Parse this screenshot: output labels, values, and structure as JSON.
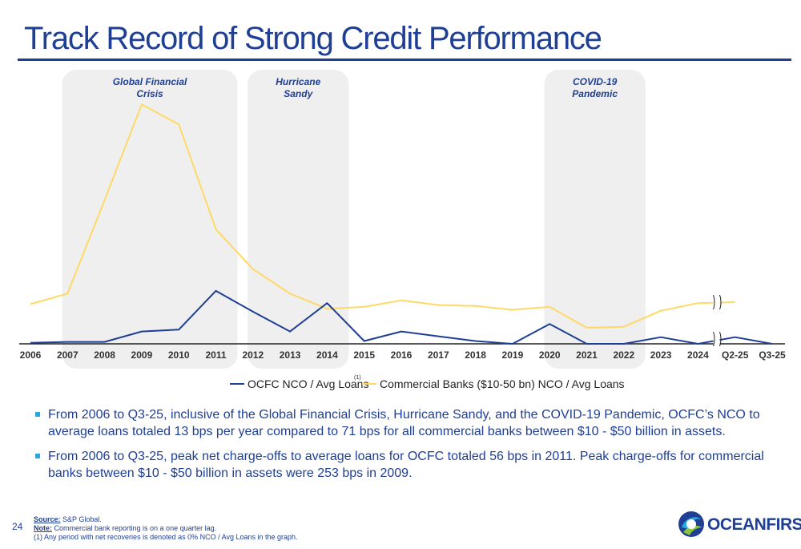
{
  "page": {
    "title": "Track Record of Strong Credit Performance",
    "page_number": "24"
  },
  "chart_data": {
    "type": "line",
    "categories": [
      "2006",
      "2007",
      "2008",
      "2009",
      "2010",
      "2011",
      "2012",
      "2013",
      "2014",
      "2015",
      "2016",
      "2017",
      "2018",
      "2019",
      "2020",
      "2021",
      "2022",
      "2023",
      "2024",
      "Q2-25",
      "Q3-25"
    ],
    "series": [
      {
        "name": "OCFC NCO / Avg Loans",
        "superscript": "(1)",
        "color": "#1f3f94",
        "values": [
          1,
          2,
          2,
          13,
          15,
          56,
          34,
          13,
          43,
          3,
          13,
          8,
          3,
          0,
          21,
          0,
          0,
          7,
          0,
          7,
          0
        ]
      },
      {
        "name": "Commercial Banks ($10-50 bn) NCO / Avg Loans",
        "color": "#ffd966",
        "values": [
          42,
          53,
          152,
          253,
          232,
          121,
          79,
          53,
          37,
          39,
          46,
          41,
          40,
          36,
          39,
          17,
          18,
          35,
          43,
          44,
          null
        ]
      }
    ],
    "ylim": [
      0,
      260
    ],
    "axis_break_between": [
      "2024",
      "Q2-25"
    ],
    "highlight_bands": [
      {
        "label_lines": [
          "Global Financial",
          "Crisis"
        ],
        "from": "2008",
        "to": "2011"
      },
      {
        "label_lines": [
          "Hurricane",
          "Sandy"
        ],
        "from": "2013",
        "to": "2014"
      },
      {
        "label_lines": [
          "COVID-19",
          "Pandemic"
        ],
        "from": "2021",
        "to": "2022"
      }
    ],
    "band_color": "#efefef",
    "xlabel": "",
    "ylabel": "",
    "grid": false,
    "legend_position": "bottom"
  },
  "bullets": [
    "From 2006 to Q3-25, inclusive of the Global Financial Crisis, Hurricane Sandy, and the COVID-19 Pandemic, OCFC’s NCO to average loans totaled 13 bps per year compared to 71 bps for all commercial banks between $10 - $50 billion in assets.",
    "From 2006 to Q3-25, peak net charge-offs to average loans for OCFC totaled 56 bps in 2011. Peak charge-offs for commercial banks between $10 - $50 billion in assets were 253 bps in 2009."
  ],
  "footnotes": {
    "source_label": "Source:",
    "source_text": " S&P Global.",
    "note_label": "Note:",
    "note_text": " Commercial bank reporting is on a one quarter lag.",
    "note_1": "(1) Any period with net recoveries is denoted as 0% NCO / Avg Loans in the graph."
  },
  "logo": {
    "text": "OCEANFIRST"
  }
}
